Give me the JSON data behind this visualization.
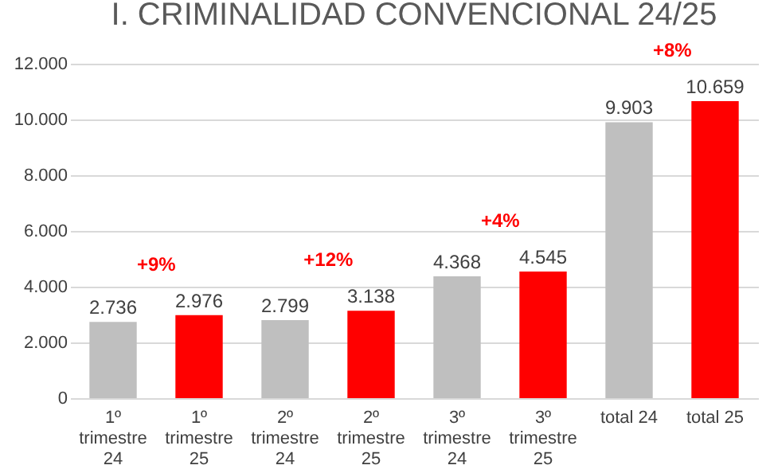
{
  "chart_data": {
    "type": "bar",
    "title": "I. CRIMINALIDAD CONVENCIONAL 24/25",
    "categories": [
      "1º trimestre 24",
      "1º trimestre 25",
      "2º trimestre 24",
      "2º trimestre 25",
      "3º trimestre 24",
      "3º trimestre 25",
      "total 24",
      "total 25"
    ],
    "values": [
      2736,
      2976,
      2799,
      3138,
      4368,
      4545,
      9903,
      10659
    ],
    "colors": [
      "#bfbfbf",
      "#ff0000",
      "#bfbfbf",
      "#ff0000",
      "#bfbfbf",
      "#ff0000",
      "#bfbfbf",
      "#ff0000"
    ],
    "value_labels": [
      "2.736",
      "2.976",
      "2.799",
      "3.138",
      "4.368",
      "4.545",
      "9.903",
      "10.659"
    ],
    "annotations": [
      "+9%",
      "+12%",
      "+4%",
      "+8%"
    ],
    "ylim": [
      0,
      12000
    ],
    "yticks": [
      0,
      {
        "value": 2000,
        "label": "2.000"
      },
      {
        "value": 4000,
        "label": "4.000"
      },
      {
        "value": 6000,
        "label": "6.000"
      },
      {
        "value": 8000,
        "label": "8.000"
      },
      {
        "value": 10000,
        "label": "10.000"
      },
      {
        "value": 12000,
        "label": "12.000"
      }
    ],
    "grid": "y",
    "legend": false
  }
}
